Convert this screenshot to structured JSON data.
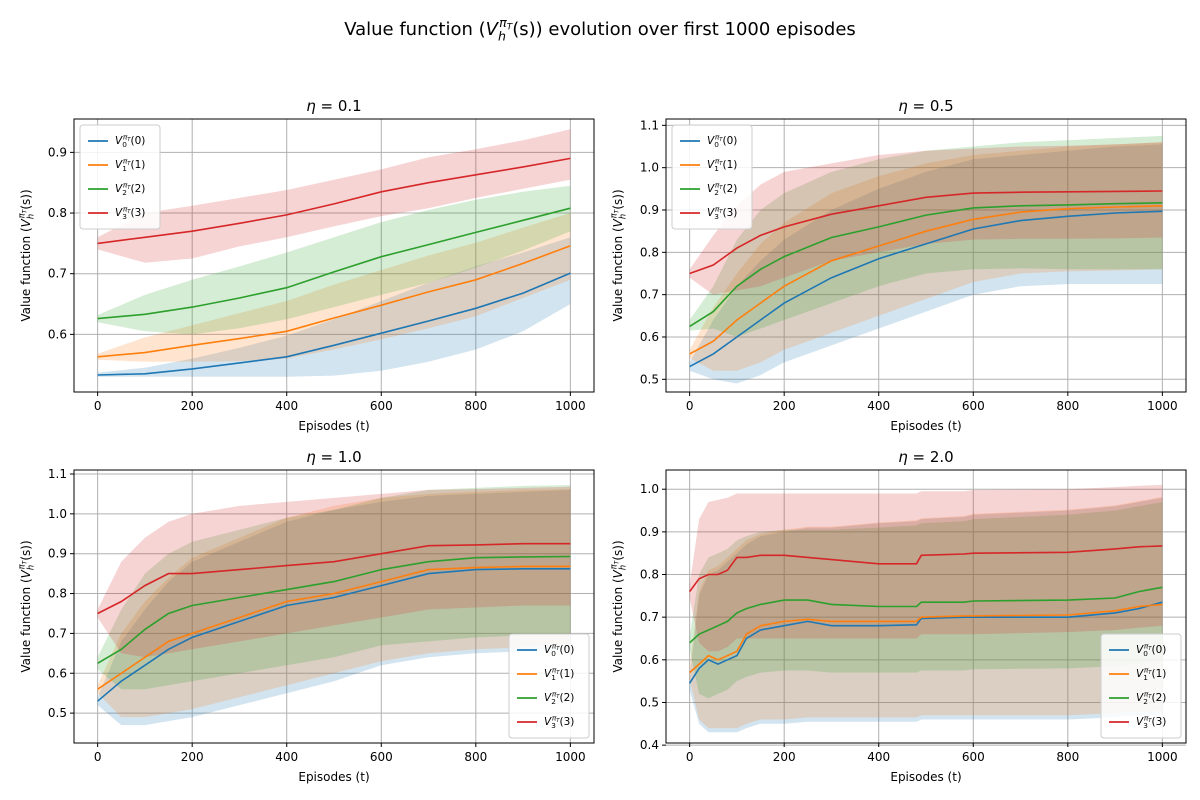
{
  "figure": {
    "suptitle_pre": "Value function (",
    "suptitle_post": ") evolution over first 1000 episodes"
  },
  "colors": [
    "#1f77b4",
    "#ff7f0e",
    "#2ca02c",
    "#d62728"
  ],
  "legend_labels": [
    {
      "sub": "0",
      "arg": "(0)"
    },
    {
      "sub": "1",
      "arg": "(1)"
    },
    {
      "sub": "2",
      "arg": "(2)"
    },
    {
      "sub": "3",
      "arg": "(3)"
    }
  ],
  "chart_data": [
    {
      "type": "line",
      "title": "η = 0.1",
      "xlabel": "Episodes (t)",
      "ylabel_pre": "Value function (",
      "ylabel_post": ")",
      "xlim": [
        -50,
        1050
      ],
      "ylim": [
        0.505,
        0.955
      ],
      "xticks": [
        0,
        200,
        400,
        600,
        800,
        1000
      ],
      "yticks": [
        0.6,
        0.7,
        0.8,
        0.9
      ],
      "ytick_labels": [
        "0.6",
        "0.7",
        "0.8",
        "0.9"
      ],
      "grid": true,
      "legend": "upper-left",
      "x": [
        0,
        100,
        200,
        300,
        400,
        500,
        600,
        700,
        800,
        900,
        1000
      ],
      "series": [
        {
          "values": [
            0.533,
            0.535,
            0.543,
            0.553,
            0.563,
            0.582,
            0.602,
            0.622,
            0.643,
            0.668,
            0.701
          ],
          "lower": [
            0.53,
            0.53,
            0.53,
            0.53,
            0.53,
            0.532,
            0.54,
            0.555,
            0.575,
            0.605,
            0.65
          ],
          "upper": [
            0.537,
            0.545,
            0.56,
            0.578,
            0.598,
            0.625,
            0.655,
            0.685,
            0.712,
            0.735,
            0.76
          ]
        },
        {
          "values": [
            0.563,
            0.57,
            0.582,
            0.593,
            0.605,
            0.627,
            0.648,
            0.67,
            0.69,
            0.717,
            0.746
          ],
          "lower": [
            0.558,
            0.555,
            0.555,
            0.556,
            0.56,
            0.575,
            0.592,
            0.61,
            0.63,
            0.66,
            0.69
          ],
          "upper": [
            0.568,
            0.595,
            0.615,
            0.635,
            0.655,
            0.682,
            0.706,
            0.73,
            0.751,
            0.776,
            0.8
          ]
        },
        {
          "values": [
            0.626,
            0.633,
            0.645,
            0.66,
            0.677,
            0.703,
            0.728,
            0.748,
            0.768,
            0.788,
            0.808
          ],
          "lower": [
            0.62,
            0.605,
            0.6,
            0.61,
            0.625,
            0.645,
            0.665,
            0.685,
            0.71,
            0.738,
            0.77
          ],
          "upper": [
            0.632,
            0.665,
            0.69,
            0.712,
            0.735,
            0.76,
            0.785,
            0.805,
            0.822,
            0.835,
            0.845
          ]
        },
        {
          "values": [
            0.75,
            0.76,
            0.77,
            0.783,
            0.797,
            0.815,
            0.835,
            0.85,
            0.863,
            0.876,
            0.89
          ],
          "lower": [
            0.74,
            0.718,
            0.725,
            0.745,
            0.76,
            0.778,
            0.795,
            0.808,
            0.825,
            0.84,
            0.855
          ],
          "upper": [
            0.76,
            0.8,
            0.812,
            0.825,
            0.838,
            0.855,
            0.872,
            0.892,
            0.905,
            0.92,
            0.938
          ]
        }
      ]
    },
    {
      "type": "line",
      "title": "η = 0.5",
      "xlabel": "Episodes (t)",
      "ylabel_pre": "Value function (",
      "ylabel_post": ")",
      "xlim": [
        -50,
        1050
      ],
      "ylim": [
        0.47,
        1.115
      ],
      "xticks": [
        0,
        200,
        400,
        600,
        800,
        1000
      ],
      "yticks": [
        0.5,
        0.6,
        0.7,
        0.8,
        0.9,
        1.0,
        1.1
      ],
      "ytick_labels": [
        "0.5",
        "0.6",
        "0.7",
        "0.8",
        "0.9",
        "1.0",
        "1.1"
      ],
      "grid": true,
      "legend": "upper-left",
      "x": [
        0,
        50,
        100,
        150,
        200,
        300,
        400,
        500,
        600,
        700,
        800,
        900,
        1000
      ],
      "series": [
        {
          "values": [
            0.53,
            0.56,
            0.6,
            0.64,
            0.68,
            0.74,
            0.785,
            0.82,
            0.855,
            0.875,
            0.885,
            0.893,
            0.897
          ],
          "lower": [
            0.52,
            0.5,
            0.49,
            0.51,
            0.54,
            0.58,
            0.62,
            0.66,
            0.7,
            0.72,
            0.725,
            0.725,
            0.725
          ],
          "upper": [
            0.54,
            0.64,
            0.72,
            0.78,
            0.83,
            0.9,
            0.95,
            0.99,
            1.02,
            1.03,
            1.04,
            1.05,
            1.055
          ]
        },
        {
          "values": [
            0.56,
            0.59,
            0.64,
            0.68,
            0.72,
            0.78,
            0.815,
            0.85,
            0.878,
            0.895,
            0.903,
            0.907,
            0.91
          ],
          "lower": [
            0.55,
            0.52,
            0.52,
            0.54,
            0.57,
            0.61,
            0.65,
            0.69,
            0.73,
            0.75,
            0.755,
            0.757,
            0.76
          ],
          "upper": [
            0.57,
            0.67,
            0.75,
            0.82,
            0.87,
            0.94,
            0.98,
            1.01,
            1.03,
            1.04,
            1.05,
            1.055,
            1.06
          ]
        },
        {
          "values": [
            0.625,
            0.66,
            0.72,
            0.76,
            0.79,
            0.835,
            0.86,
            0.888,
            0.905,
            0.91,
            0.912,
            0.915,
            0.917
          ],
          "lower": [
            0.615,
            0.62,
            0.6,
            0.62,
            0.64,
            0.68,
            0.72,
            0.75,
            0.76,
            0.762,
            0.76,
            0.76,
            0.76
          ],
          "upper": [
            0.64,
            0.72,
            0.83,
            0.9,
            0.94,
            0.99,
            1.02,
            1.04,
            1.05,
            1.06,
            1.065,
            1.07,
            1.075
          ]
        },
        {
          "values": [
            0.75,
            0.77,
            0.81,
            0.84,
            0.86,
            0.89,
            0.91,
            0.93,
            0.94,
            0.942,
            0.943,
            0.944,
            0.945
          ],
          "lower": [
            0.74,
            0.7,
            0.71,
            0.72,
            0.74,
            0.78,
            0.8,
            0.82,
            0.83,
            0.832,
            0.832,
            0.833,
            0.835
          ],
          "upper": [
            0.76,
            0.84,
            0.91,
            0.96,
            0.99,
            1.01,
            1.03,
            1.04,
            1.045,
            1.05,
            1.052,
            1.055,
            1.06
          ]
        }
      ]
    },
    {
      "type": "line",
      "title": "η = 1.0",
      "xlabel": "Episodes (t)",
      "ylabel_pre": "Value function (",
      "ylabel_post": ")",
      "xlim": [
        -50,
        1050
      ],
      "ylim": [
        0.425,
        1.11
      ],
      "xticks": [
        0,
        200,
        400,
        600,
        800,
        1000
      ],
      "yticks": [
        0.5,
        0.6,
        0.7,
        0.8,
        0.9,
        1.0,
        1.1
      ],
      "ytick_labels": [
        "0.5",
        "0.6",
        "0.7",
        "0.8",
        "0.9",
        "1.0",
        "1.1"
      ],
      "grid": true,
      "legend": "lower-right",
      "x": [
        0,
        50,
        100,
        150,
        200,
        300,
        400,
        500,
        600,
        700,
        800,
        900,
        1000
      ],
      "series": [
        {
          "values": [
            0.53,
            0.58,
            0.62,
            0.66,
            0.69,
            0.73,
            0.77,
            0.79,
            0.82,
            0.85,
            0.86,
            0.862,
            0.862
          ],
          "lower": [
            0.52,
            0.47,
            0.47,
            0.48,
            0.49,
            0.52,
            0.55,
            0.58,
            0.62,
            0.64,
            0.65,
            0.655,
            0.66
          ],
          "upper": [
            0.54,
            0.68,
            0.76,
            0.83,
            0.88,
            0.93,
            0.98,
            1.01,
            1.03,
            1.045,
            1.05,
            1.055,
            1.06
          ]
        },
        {
          "values": [
            0.56,
            0.6,
            0.64,
            0.68,
            0.7,
            0.74,
            0.78,
            0.8,
            0.83,
            0.86,
            0.865,
            0.868,
            0.868
          ],
          "lower": [
            0.55,
            0.49,
            0.49,
            0.5,
            0.51,
            0.54,
            0.57,
            0.6,
            0.63,
            0.65,
            0.66,
            0.665,
            0.67
          ],
          "upper": [
            0.57,
            0.7,
            0.78,
            0.84,
            0.89,
            0.94,
            0.99,
            1.02,
            1.04,
            1.05,
            1.055,
            1.06,
            1.062
          ]
        },
        {
          "values": [
            0.625,
            0.66,
            0.71,
            0.75,
            0.77,
            0.79,
            0.81,
            0.83,
            0.86,
            0.88,
            0.89,
            0.892,
            0.893
          ],
          "lower": [
            0.61,
            0.56,
            0.56,
            0.57,
            0.58,
            0.6,
            0.62,
            0.64,
            0.67,
            0.68,
            0.69,
            0.695,
            0.7
          ],
          "upper": [
            0.64,
            0.76,
            0.85,
            0.9,
            0.93,
            0.96,
            0.99,
            1.01,
            1.04,
            1.06,
            1.065,
            1.07,
            1.072
          ]
        },
        {
          "values": [
            0.75,
            0.78,
            0.82,
            0.85,
            0.85,
            0.86,
            0.87,
            0.88,
            0.9,
            0.92,
            0.922,
            0.925,
            0.925
          ],
          "lower": [
            0.74,
            0.65,
            0.64,
            0.65,
            0.66,
            0.68,
            0.7,
            0.72,
            0.74,
            0.76,
            0.765,
            0.77,
            0.77
          ],
          "upper": [
            0.76,
            0.88,
            0.94,
            0.98,
            1.0,
            1.02,
            1.03,
            1.04,
            1.05,
            1.06,
            1.062,
            1.065,
            1.068
          ]
        }
      ]
    },
    {
      "type": "line",
      "title": "η = 2.0",
      "xlabel": "Episodes (t)",
      "ylabel_pre": "Value function (",
      "ylabel_post": ")",
      "xlim": [
        -50,
        1050
      ],
      "ylim": [
        0.405,
        1.045
      ],
      "xticks": [
        0,
        200,
        400,
        600,
        800,
        1000
      ],
      "yticks": [
        0.4,
        0.5,
        0.6,
        0.7,
        0.8,
        0.9,
        1.0
      ],
      "ytick_labels": [
        "0.4",
        "0.5",
        "0.6",
        "0.7",
        "0.8",
        "0.9",
        "1.0"
      ],
      "grid": true,
      "legend": "lower-right",
      "x": [
        0,
        20,
        40,
        60,
        80,
        100,
        120,
        150,
        200,
        250,
        300,
        400,
        480,
        490,
        580,
        600,
        800,
        900,
        950,
        1000
      ],
      "series": [
        {
          "values": [
            0.545,
            0.58,
            0.6,
            0.59,
            0.6,
            0.61,
            0.65,
            0.67,
            0.68,
            0.69,
            0.68,
            0.68,
            0.682,
            0.697,
            0.7,
            0.7,
            0.7,
            0.71,
            0.72,
            0.735
          ],
          "lower": [
            0.53,
            0.45,
            0.43,
            0.43,
            0.43,
            0.43,
            0.44,
            0.45,
            0.45,
            0.455,
            0.455,
            0.455,
            0.455,
            0.46,
            0.46,
            0.46,
            0.46,
            0.465,
            0.47,
            0.47
          ],
          "upper": [
            0.56,
            0.75,
            0.8,
            0.81,
            0.83,
            0.85,
            0.87,
            0.89,
            0.9,
            0.91,
            0.91,
            0.92,
            0.925,
            0.93,
            0.935,
            0.94,
            0.95,
            0.96,
            0.97,
            0.98
          ]
        },
        {
          "values": [
            0.57,
            0.59,
            0.61,
            0.6,
            0.61,
            0.62,
            0.66,
            0.68,
            0.69,
            0.695,
            0.69,
            0.69,
            0.69,
            0.7,
            0.703,
            0.703,
            0.705,
            0.715,
            0.725,
            0.73
          ],
          "lower": [
            0.555,
            0.46,
            0.44,
            0.44,
            0.44,
            0.44,
            0.45,
            0.46,
            0.46,
            0.465,
            0.465,
            0.465,
            0.465,
            0.47,
            0.47,
            0.47,
            0.47,
            0.475,
            0.478,
            0.48
          ],
          "upper": [
            0.585,
            0.76,
            0.81,
            0.82,
            0.84,
            0.86,
            0.88,
            0.895,
            0.905,
            0.912,
            0.912,
            0.922,
            0.927,
            0.932,
            0.937,
            0.942,
            0.952,
            0.962,
            0.972,
            0.982
          ]
        },
        {
          "values": [
            0.64,
            0.66,
            0.67,
            0.68,
            0.69,
            0.71,
            0.72,
            0.73,
            0.74,
            0.74,
            0.73,
            0.725,
            0.725,
            0.735,
            0.735,
            0.738,
            0.74,
            0.745,
            0.76,
            0.77
          ],
          "lower": [
            0.625,
            0.52,
            0.51,
            0.52,
            0.53,
            0.55,
            0.56,
            0.57,
            0.575,
            0.575,
            0.57,
            0.57,
            0.57,
            0.575,
            0.575,
            0.578,
            0.58,
            0.585,
            0.59,
            0.6
          ],
          "upper": [
            0.655,
            0.8,
            0.84,
            0.85,
            0.86,
            0.88,
            0.89,
            0.9,
            0.905,
            0.905,
            0.905,
            0.91,
            0.915,
            0.92,
            0.925,
            0.93,
            0.94,
            0.95,
            0.96,
            0.97
          ]
        },
        {
          "values": [
            0.76,
            0.79,
            0.8,
            0.8,
            0.81,
            0.84,
            0.84,
            0.845,
            0.845,
            0.84,
            0.835,
            0.825,
            0.825,
            0.845,
            0.848,
            0.85,
            0.852,
            0.86,
            0.865,
            0.867
          ],
          "lower": [
            0.745,
            0.64,
            0.62,
            0.62,
            0.63,
            0.65,
            0.65,
            0.65,
            0.65,
            0.65,
            0.65,
            0.65,
            0.65,
            0.66,
            0.66,
            0.66,
            0.665,
            0.67,
            0.675,
            0.68
          ],
          "upper": [
            0.775,
            0.93,
            0.97,
            0.975,
            0.98,
            0.99,
            0.99,
            0.99,
            0.99,
            0.99,
            0.99,
            0.99,
            0.99,
            0.995,
            0.995,
            0.998,
            1.0,
            1.005,
            1.008,
            1.01
          ]
        }
      ]
    }
  ]
}
